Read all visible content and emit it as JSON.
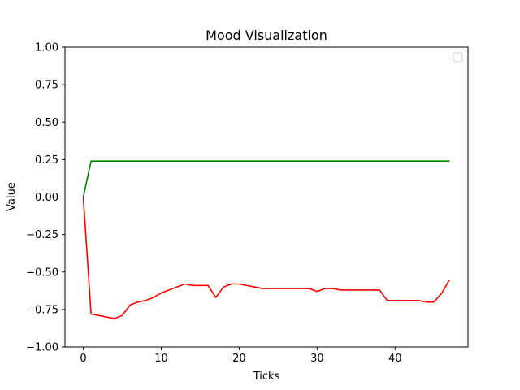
{
  "chart_data": {
    "type": "line",
    "title": "Mood Visualization",
    "xlabel": "Ticks",
    "ylabel": "Value",
    "xlim": [
      -2.35,
      49.35
    ],
    "ylim": [
      -1.0,
      1.0
    ],
    "xticks": [
      0,
      10,
      20,
      30,
      40
    ],
    "xtick_labels": [
      "0",
      "10",
      "20",
      "30",
      "40"
    ],
    "yticks": [
      -1.0,
      -0.75,
      -0.5,
      -0.25,
      0.0,
      0.25,
      0.5,
      0.75,
      1.0
    ],
    "ytick_labels": [
      "−1.00",
      "−0.75",
      "−0.50",
      "−0.25",
      "0.00",
      "0.25",
      "0.50",
      "0.75",
      "1.00"
    ],
    "grid": false,
    "legend": {
      "position": "top-right",
      "entries": []
    },
    "series": [
      {
        "color": "#008000",
        "x": [
          0,
          1,
          47
        ],
        "y": [
          0.0,
          0.24,
          0.24
        ]
      },
      {
        "color": "#ff0000",
        "x": [
          0,
          1,
          2,
          3,
          4,
          5,
          6,
          7,
          8,
          9,
          10,
          11,
          12,
          13,
          14,
          15,
          16,
          17,
          18,
          19,
          20,
          21,
          22,
          23,
          24,
          25,
          26,
          27,
          28,
          29,
          30,
          31,
          32,
          33,
          34,
          35,
          36,
          37,
          38,
          39,
          40,
          41,
          42,
          43,
          44,
          45,
          46,
          47
        ],
        "y": [
          0.0,
          -0.78,
          -0.79,
          -0.8,
          -0.81,
          -0.79,
          -0.72,
          -0.7,
          -0.69,
          -0.67,
          -0.64,
          -0.62,
          -0.6,
          -0.58,
          -0.59,
          -0.59,
          -0.59,
          -0.67,
          -0.6,
          -0.58,
          -0.58,
          -0.59,
          -0.6,
          -0.61,
          -0.61,
          -0.61,
          -0.61,
          -0.61,
          -0.61,
          -0.61,
          -0.63,
          -0.61,
          -0.61,
          -0.62,
          -0.62,
          -0.62,
          -0.62,
          -0.62,
          -0.62,
          -0.69,
          -0.69,
          -0.69,
          -0.69,
          -0.69,
          -0.7,
          -0.7,
          -0.64,
          -0.55
        ]
      }
    ]
  }
}
